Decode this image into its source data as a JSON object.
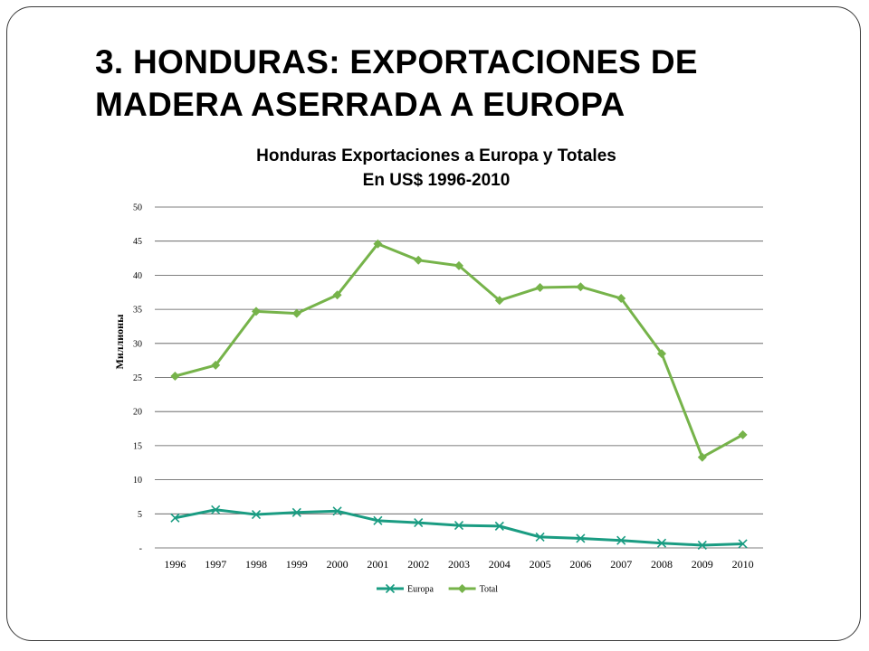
{
  "slide": {
    "title_line1": "3. HONDURAS: EXPORTACIONES DE",
    "title_line2": "MADERA ASERRADA A EUROPA"
  },
  "chart_data": {
    "type": "line",
    "title_line1": "Honduras Exportaciones a Europa y Totales",
    "title_line2": "En US$ 1996-2010",
    "ylabel": "Миллионы",
    "xlabel": "",
    "ylim": [
      0,
      50
    ],
    "yticks": [
      0,
      5,
      10,
      15,
      20,
      25,
      30,
      35,
      40,
      45,
      50
    ],
    "ytick_labels": [
      "-",
      "5",
      "10",
      "15",
      "20",
      "25",
      "30",
      "35",
      "40",
      "45",
      "50"
    ],
    "grid": "horizontal",
    "legend_position": "bottom",
    "categories": [
      "1996",
      "1997",
      "1998",
      "1999",
      "2000",
      "2001",
      "2002",
      "2003",
      "2004",
      "2005",
      "2006",
      "2007",
      "2008",
      "2009",
      "2010"
    ],
    "series": [
      {
        "name": "Europa",
        "color": "#1a9c82",
        "marker": "x",
        "values": [
          4.4,
          5.6,
          4.9,
          5.2,
          5.4,
          4.0,
          3.7,
          3.3,
          3.2,
          1.6,
          1.4,
          1.1,
          0.7,
          0.4,
          0.6
        ]
      },
      {
        "name": "Total",
        "color": "#76b34a",
        "marker": "diamond",
        "values": [
          25.2,
          26.8,
          34.7,
          34.4,
          37.1,
          44.6,
          42.2,
          41.4,
          36.3,
          38.2,
          38.3,
          36.6,
          28.5,
          13.3,
          16.6
        ]
      }
    ]
  }
}
